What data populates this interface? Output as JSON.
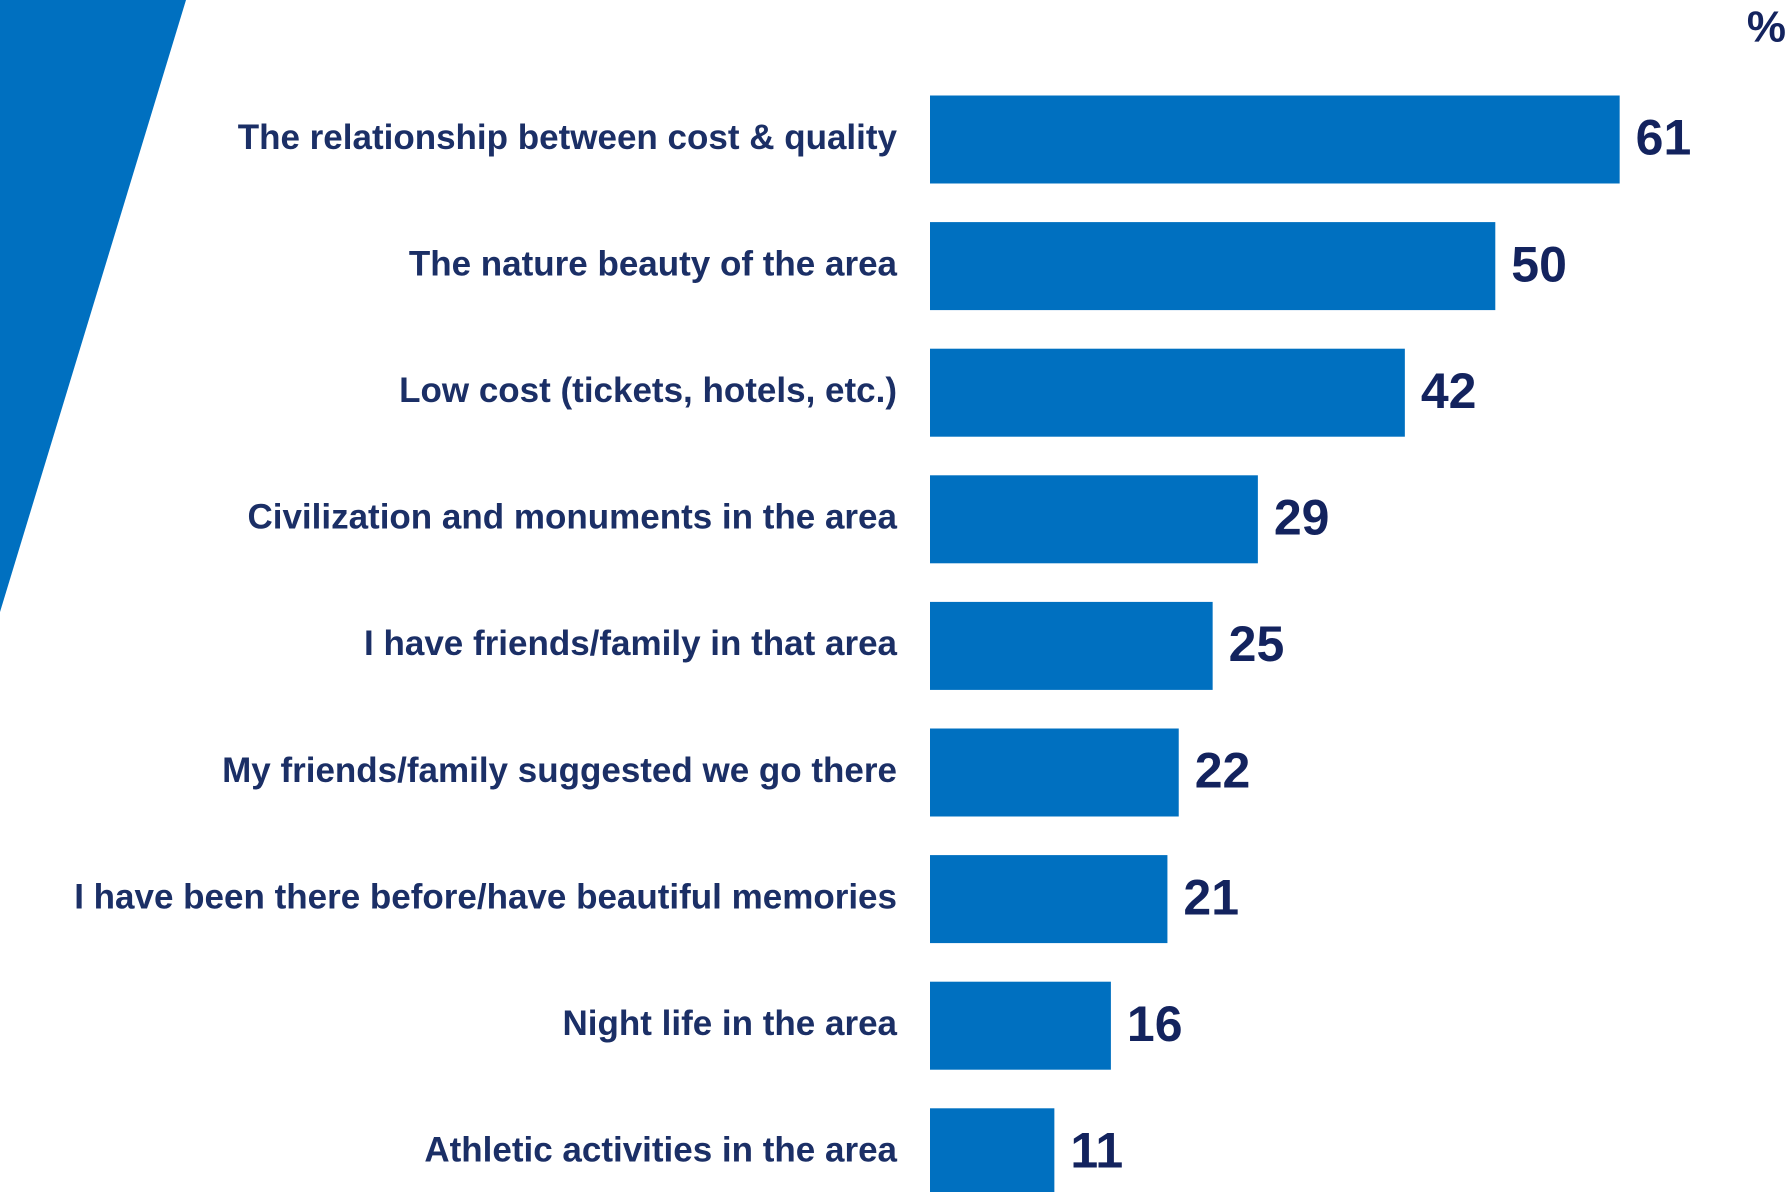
{
  "chart_data": {
    "type": "bar",
    "orientation": "horizontal",
    "unit": "%",
    "categories": [
      "The relationship between cost & quality",
      "The nature beauty of the area",
      "Low cost (tickets, hotels, etc.)",
      "Civilization and monuments in the area",
      "I have friends/family in that area",
      "My friends/family suggested we go there",
      "I have been there before/have beautiful memories",
      "Night life in the area",
      "Athletic activities in the area"
    ],
    "values": [
      61,
      50,
      42,
      29,
      25,
      22,
      21,
      16,
      11
    ],
    "color": "#0070c0"
  }
}
